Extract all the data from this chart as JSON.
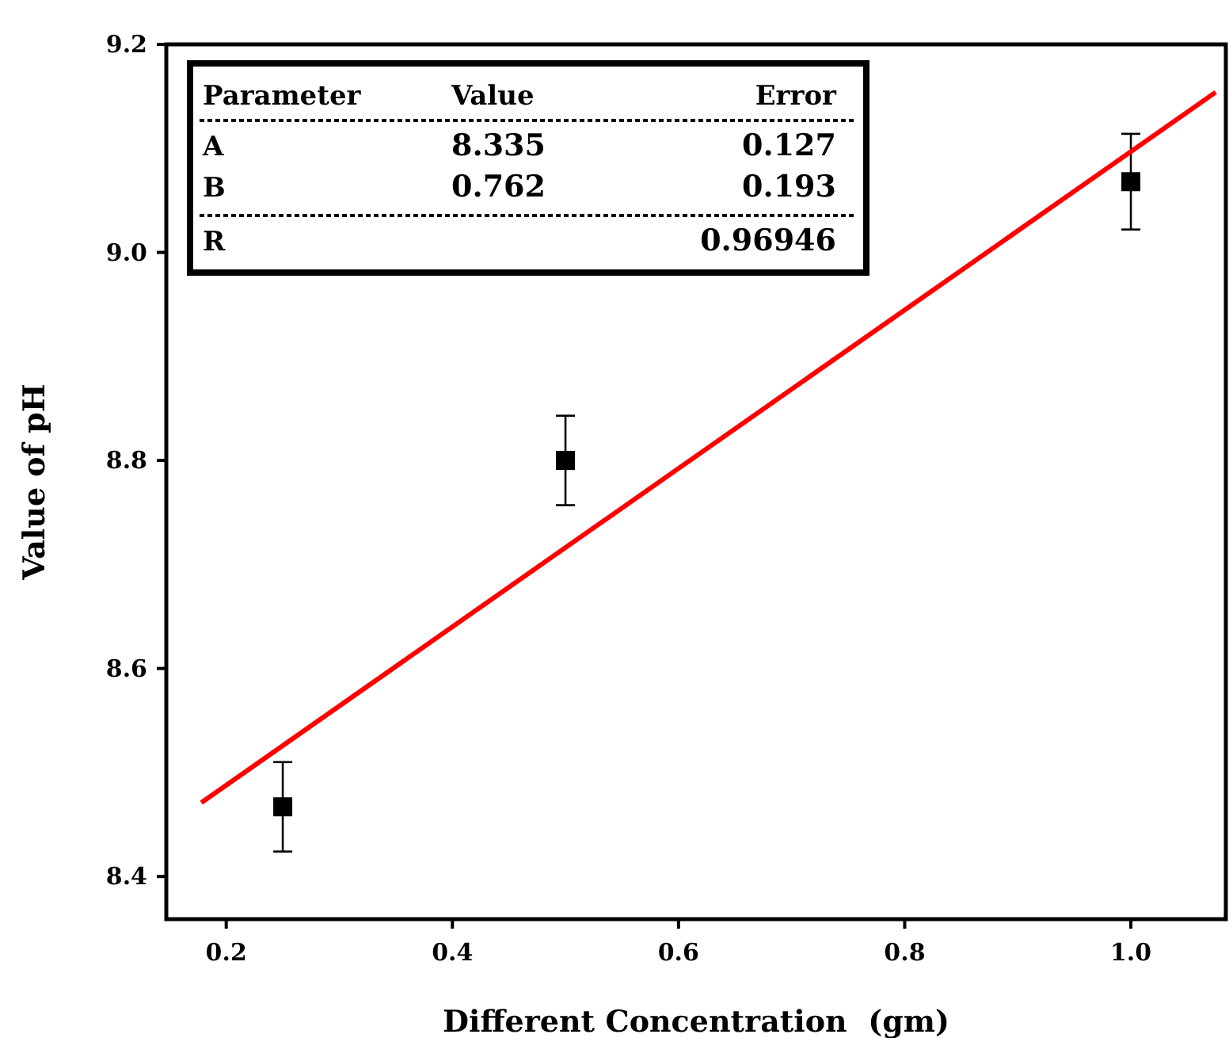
{
  "chart_data": {
    "type": "scatter",
    "xlabel": "Different Concentration  (gm)",
    "ylabel": "Value of pH",
    "xlim": [
      0.147,
      1.084
    ],
    "xticks": [
      {
        "value": 0.2,
        "label": "0.2"
      },
      {
        "value": 0.4,
        "label": "0.4"
      },
      {
        "value": 0.6,
        "label": "0.6"
      },
      {
        "value": 0.8,
        "label": "0.8"
      },
      {
        "value": 1.0,
        "label": "1.0"
      }
    ],
    "ylim": [
      8.359,
      9.2
    ],
    "yticks": [
      {
        "value": 8.4,
        "label": "8.4"
      },
      {
        "value": 8.6,
        "label": "8.6"
      },
      {
        "value": 8.8,
        "label": "8.8"
      },
      {
        "value": 9.0,
        "label": "9.0"
      },
      {
        "value": 9.2,
        "label": "9.2"
      }
    ],
    "grid": false,
    "series": [
      {
        "marker": "square",
        "color": "#000000",
        "x": [
          0.25,
          0.5,
          1.0
        ],
        "values": [
          8.467,
          8.8,
          9.068
        ],
        "errors": [
          0.043,
          0.043,
          0.046
        ]
      },
      {
        "type": "line",
        "color": "#ff0000",
        "x": [
          0.178,
          1.075
        ],
        "values": [
          8.471,
          9.154
        ]
      }
    ],
    "annotations": [
      "Parameter",
      "Value",
      "Error",
      "A",
      "8.335",
      "0.127",
      "B",
      "0.762",
      "0.193",
      "R",
      "0.96946"
    ]
  }
}
